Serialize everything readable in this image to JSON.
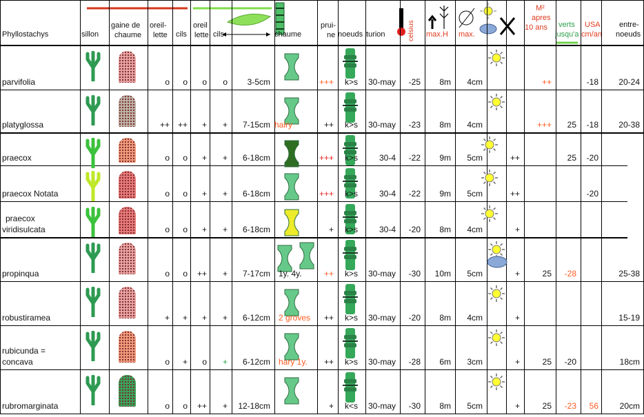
{
  "header": {
    "col_name": "Phyllostachys",
    "col_sillon": "sillon",
    "col_gaine_1": "gaine de",
    "col_gaine_2": "chaume",
    "col_oreillette_a_1": "oreil-",
    "col_oreillette_a_2": "lette",
    "col_cils_a": "cils",
    "col_oreillette_b_1": "oreil",
    "col_oreillette_b_2": "lette",
    "col_cils_b": "cils",
    "col_chaume": "chaume",
    "col_pruine_1": "prui-",
    "col_pruine_2": "ne",
    "col_noeuds": "noeuds",
    "col_turion": "turion",
    "col_celsius": "celsius",
    "col_maxh": "max.H",
    "col_maxd": "max.",
    "col_m2_1": "M²",
    "col_m2_2": "apres",
    "col_m2_3": "10 ans",
    "col_verts_1": "verts",
    "col_verts_2": "jusqu'a",
    "col_usa_1": "USA",
    "col_usa_2": "cm/an",
    "col_entre_1": "entre-",
    "col_entre_2": "noeuds"
  },
  "colors": {
    "leaf_green": "#2e9a52",
    "culm_green": "#66c98a",
    "culm_dark": "#2f6e22",
    "culm_yellow": "#ecec2a",
    "sheath_pink": "#e8a2a2",
    "sheath_grey": "#bdb2a6",
    "sheath_salmon": "#f09a7c",
    "sheath_red": "#e87a7a",
    "sheath_green": "#3aa35c",
    "sun_yellow": "#ffff33",
    "accent_red": "#e03a1e"
  },
  "rows": [
    {
      "name": "parvifolia",
      "oa": "o",
      "ca": "o",
      "ob": "o",
      "cb": "o",
      "diam": "3-5cm",
      "chaume_note": "",
      "pruine": "+++",
      "noeuds": "k>s",
      "turion": "30-may",
      "temp": "-25",
      "maxh": "8m",
      "maxd": "4cm",
      "x": "",
      "m2": "++",
      "verts": "",
      "usa_pre": "-18",
      "usa": "",
      "entre": "20-24"
    },
    {
      "name": "platyglossa",
      "oa": "++",
      "ca": "++",
      "ob": "+",
      "cb": "+",
      "diam": "7-15cm",
      "chaume_note": "hairy",
      "pruine": "++",
      "noeuds": "k>s",
      "turion": "30-may",
      "temp": "-23",
      "maxh": "8m",
      "maxd": "4cm",
      "x": "",
      "m2": "+++",
      "verts": "25",
      "usa_pre": "-18",
      "usa": "",
      "entre": "20-38"
    },
    {
      "name": "praecox",
      "oa": "o",
      "ca": "o",
      "ob": "+",
      "cb": "+",
      "diam": "6-18cm",
      "chaume_note": "",
      "pruine": "+++",
      "noeuds": "k>s",
      "turion": "30-4",
      "temp": "-22",
      "maxh": "9m",
      "maxd": "5cm",
      "x": "++",
      "m2": "",
      "verts": "25",
      "usa_pre": "-20",
      "usa": "",
      "entre": ""
    },
    {
      "name": "praecox Notata",
      "oa": "o",
      "ca": "o",
      "ob": "+",
      "cb": "+",
      "diam": "6-18cm",
      "chaume_note": "",
      "pruine": "+++",
      "noeuds": "k>s",
      "turion": "30-4",
      "temp": "-22",
      "maxh": "9m",
      "maxd": "5cm",
      "x": "++",
      "m2": "",
      "verts": "",
      "usa_pre": "-20",
      "usa": "",
      "entre": ""
    },
    {
      "name": "praecox viridisulcata",
      "name_1": "praecox",
      "name_2": "viridisulcata",
      "oa": "o",
      "ca": "o",
      "ob": "+",
      "cb": "+",
      "diam": "6-18cm",
      "chaume_note": "",
      "pruine": "+",
      "noeuds": "k>s",
      "turion": "30-4",
      "temp": "-20",
      "maxh": "8m",
      "maxd": "4cm",
      "x": "+",
      "m2": "",
      "verts": "",
      "usa_pre": "",
      "usa": "",
      "entre": ""
    },
    {
      "name": "propinqua",
      "oa": "o",
      "ca": "o",
      "ob": "++",
      "cb": "+",
      "diam": "7-17cm",
      "chaume_note": "1y.  4y.",
      "pruine": "++",
      "noeuds": "k>s",
      "turion": "30-may",
      "temp": "-30",
      "maxh": "10m",
      "maxd": "5cm",
      "x": "+",
      "m2": "25",
      "verts": "-28",
      "usa_pre": "",
      "usa": "",
      "entre": "25-38"
    },
    {
      "name": "robustiramea",
      "oa": "+",
      "ca": "+",
      "ob": "+",
      "cb": "+",
      "diam": "6-12cm",
      "chaume_note": "2 groves",
      "pruine": "++",
      "noeuds": "k>s",
      "turion": "30-may",
      "temp": "-20",
      "maxh": "8m",
      "maxd": "4cm",
      "x": "+",
      "m2": "",
      "verts": "",
      "usa_pre": "",
      "usa": "",
      "entre": "15-19"
    },
    {
      "name": "rubicunda = concava",
      "name_1": "rubicunda =",
      "name_2": "concava",
      "oa": "o",
      "ca": "+",
      "ob": "o",
      "cb": "+",
      "diam": "6-12cm",
      "chaume_note": "hary 1y.",
      "pruine": "++",
      "noeuds": "k>s",
      "turion": "30-may",
      "temp": "-28",
      "maxh": "6m",
      "maxd": "3cm",
      "x": "+",
      "m2": "25",
      "verts": "-20",
      "usa_pre": "",
      "usa": "",
      "entre": "18cm"
    },
    {
      "name": "rubromarginata",
      "oa": "o",
      "ca": "o",
      "ob": "++",
      "cb": "+",
      "diam": "12-18cm",
      "chaume_note": "",
      "pruine": "+",
      "noeuds": "k<s",
      "turion": "30-may",
      "temp": "-30",
      "maxh": "8m",
      "maxd": "5cm",
      "x": "+",
      "m2": "25",
      "verts": "-23",
      "usa_pre": "56",
      "usa": "",
      "entre": "20cm"
    }
  ]
}
